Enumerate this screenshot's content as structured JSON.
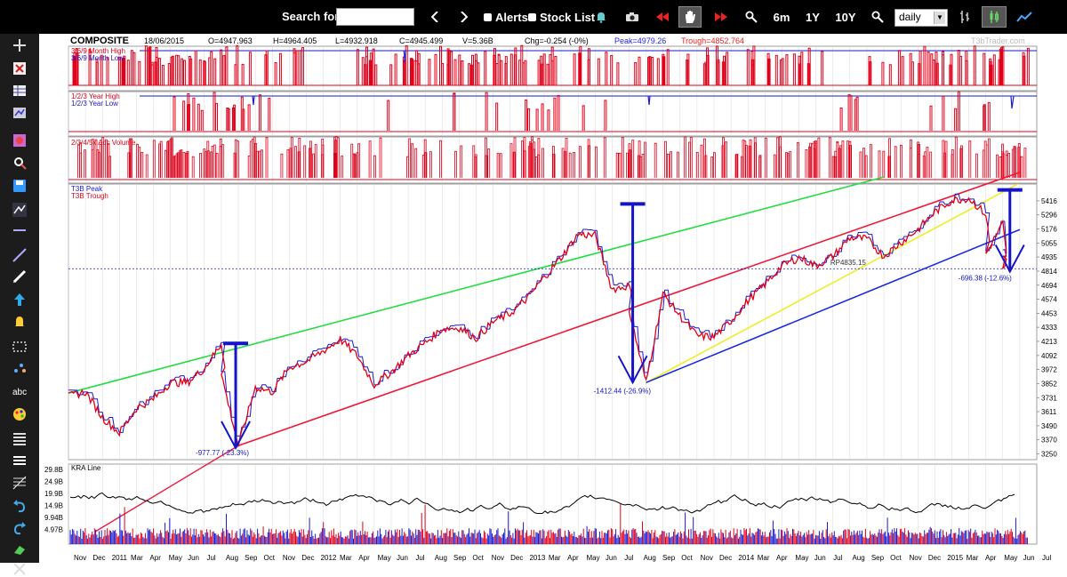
{
  "toolbar": {
    "search_label": "Search for:",
    "search_value": "",
    "alerts_label": "Alerts",
    "stock_list_label": "Stock List",
    "range_6m": "6m",
    "range_1y": "1Y",
    "range_10y": "10Y",
    "period_value": "daily",
    "icons": [
      "prev-arrow-icon",
      "next-arrow-icon",
      "bell-icon",
      "camera-icon",
      "rewind-icon",
      "hand-icon",
      "fast-forward-icon",
      "zoom-in-icon",
      "zoom-out-icon",
      "bars-icon",
      "line-chart-icon"
    ]
  },
  "sidebar": {
    "icons": [
      "plus-icon",
      "excel-icon",
      "table-icon",
      "compare-icon",
      "heatmap-icon",
      "zoom-icon",
      "save-icon",
      "annotate-icon",
      "horizontal-line-icon",
      "trend-line-icon",
      "pen-icon",
      "arrow-up-icon",
      "bell-icon",
      "rectangle-icon",
      "scatter-icon",
      "abc-text-icon",
      "palette-icon",
      "list-icon",
      "menu-icon",
      "fib-icon",
      "undo-icon",
      "redo-icon",
      "eraser-icon",
      "delete-icon"
    ]
  },
  "header": {
    "symbol": "COMPOSITE",
    "date": "18/06/2015",
    "open": "O=4947.963",
    "high": "H=4964.405",
    "low": "L=4932.918",
    "close": "C=4945.499",
    "volume": "V=5.36B",
    "change": "Chg=-0.254 (-0%)",
    "peak": "Peak=4979.26",
    "trough": "Trough=4852.764",
    "watermark": "T3bTrader.com"
  },
  "panels": {
    "month_high": "3/6/9 Month High",
    "month_low": "3/6/9 Month Low",
    "year_high": "1/2/3 Year High",
    "year_low": "1/2/3 Year Low",
    "acc_volume": "2/3/4/5x Acc Volume",
    "t3b_peak": "T3B Peak",
    "t3b_trough": "T3B Trough",
    "kra_line": "KRA Line"
  },
  "annotations": {
    "drop1": "-977.77 (-23.3%)",
    "drop2": "-1412.44 (-26.9%)",
    "drop3": "-696.38 (-12.6%)",
    "rp_label": "RP4835.15"
  },
  "colors": {
    "price_red": "#e0001a",
    "price_blue": "#1a1ad0",
    "green_channel": "#22dd44",
    "red_channel": "#ee1a3a",
    "yellow_channel": "#eeee22",
    "blue_channel": "#1a2ae0",
    "annot_blue": "#1414c8",
    "black_bar": "#000000",
    "grid": "#d8d8d8"
  },
  "chart_data": [
    {
      "type": "line",
      "title": "",
      "y_ticks": [
        5416,
        5296,
        5176,
        5055,
        4935,
        4814,
        4694,
        4574,
        4453,
        4333,
        4213,
        4092,
        3972,
        3852,
        3731,
        3611,
        3490,
        3370,
        3250
      ],
      "ylim": [
        3200,
        5560
      ],
      "x_ticks": [
        "Nov",
        "Dec",
        "2011",
        "Mar",
        "Apr",
        "May",
        "Jun",
        "Jul",
        "Aug",
        "Sep",
        "Oct",
        "Nov",
        "Dec",
        "2012",
        "Mar",
        "Apr",
        "May",
        "Jun",
        "Jul",
        "Aug",
        "Sep",
        "Oct",
        "Nov",
        "Dec",
        "2013",
        "Mar",
        "Apr",
        "May",
        "Jun",
        "Jul",
        "Aug",
        "Sep",
        "Oct",
        "Nov",
        "Dec",
        "2014",
        "Mar",
        "Apr",
        "May",
        "Jun",
        "Jul",
        "Aug",
        "Sep",
        "Oct",
        "Nov",
        "Dec",
        "2015",
        "Mar",
        "Apr",
        "May",
        "Jun",
        "Jul"
      ],
      "series": [
        {
          "name": "T3B Peak",
          "color": "#e0001a"
        },
        {
          "name": "T3B Trough",
          "color": "#1a1ad0"
        }
      ],
      "price_path": [
        [
          "2010-11",
          3740
        ],
        [
          "2010-12",
          3780
        ],
        [
          "2011-01",
          3560
        ],
        [
          "2011-02",
          3430
        ],
        [
          "2011-03",
          3640
        ],
        [
          "2011-04",
          3720
        ],
        [
          "2011-05",
          3860
        ],
        [
          "2011-06",
          3860
        ],
        [
          "2011-07",
          3980
        ],
        [
          "2011-08",
          4190
        ],
        [
          "2011-08",
          3930
        ],
        [
          "2011-09",
          3320
        ],
        [
          "2011-10",
          3820
        ],
        [
          "2011-11",
          3780
        ],
        [
          "2011-12",
          3990
        ],
        [
          "2012-01",
          4040
        ],
        [
          "2012-02",
          4130
        ],
        [
          "2012-03",
          4230
        ],
        [
          "2012-04",
          4090
        ],
        [
          "2012-05",
          3840
        ],
        [
          "2012-06",
          3950
        ],
        [
          "2012-07",
          4090
        ],
        [
          "2012-08",
          4200
        ],
        [
          "2012-09",
          4320
        ],
        [
          "2012-10",
          4330
        ],
        [
          "2012-11",
          4240
        ],
        [
          "2012-12",
          4380
        ],
        [
          "2013-01",
          4450
        ],
        [
          "2013-02",
          4580
        ],
        [
          "2013-03",
          4760
        ],
        [
          "2013-04",
          4930
        ],
        [
          "2013-05",
          5130
        ],
        [
          "2013-06",
          5120
        ],
        [
          "2013-07",
          4660
        ],
        [
          "2013-08",
          4690
        ],
        [
          "2013-08",
          4480
        ],
        [
          "2013-09",
          3860
        ],
        [
          "2013-10",
          4620
        ],
        [
          "2013-11",
          4430
        ],
        [
          "2013-12",
          4260
        ],
        [
          "2014-01",
          4250
        ],
        [
          "2014-02",
          4390
        ],
        [
          "2014-03",
          4560
        ],
        [
          "2014-04",
          4700
        ],
        [
          "2014-05",
          4860
        ],
        [
          "2014-06",
          4930
        ],
        [
          "2014-07",
          4860
        ],
        [
          "2014-08",
          4940
        ],
        [
          "2014-09",
          5100
        ],
        [
          "2014-10",
          5090
        ],
        [
          "2014-11",
          4940
        ],
        [
          "2014-12",
          5060
        ],
        [
          "2015-01",
          5170
        ],
        [
          "2015-02",
          5320
        ],
        [
          "2015-03",
          5420
        ],
        [
          "2015-04",
          5440
        ],
        [
          "2015-05",
          5300
        ],
        [
          "2015-05",
          4960
        ],
        [
          "2015-06",
          5220
        ],
        [
          "2015-06",
          4820
        ],
        [
          "2015-06",
          4945
        ]
      ],
      "channels": [
        {
          "name": "green",
          "from": [
            "2010-11",
            3770
          ],
          "to": [
            "2014-11",
            5620
          ]
        },
        {
          "name": "red",
          "from": [
            "2011-09",
            3320
          ],
          "to": [
            "2015-07",
            5660
          ]
        },
        {
          "name": "yellow",
          "from": [
            "2013-09",
            3860
          ],
          "to": [
            "2015-07",
            5570
          ]
        },
        {
          "name": "blue",
          "from": [
            "2013-09",
            3860
          ],
          "to": [
            "2015-07",
            5170
          ]
        }
      ],
      "rp_level": 4835.15
    },
    {
      "type": "bar",
      "title": "KRA Line",
      "y_ticks": [
        "29.8B",
        "24.9B",
        "19.9B",
        "14.9B",
        "9.94B",
        "4.97B"
      ]
    }
  ]
}
